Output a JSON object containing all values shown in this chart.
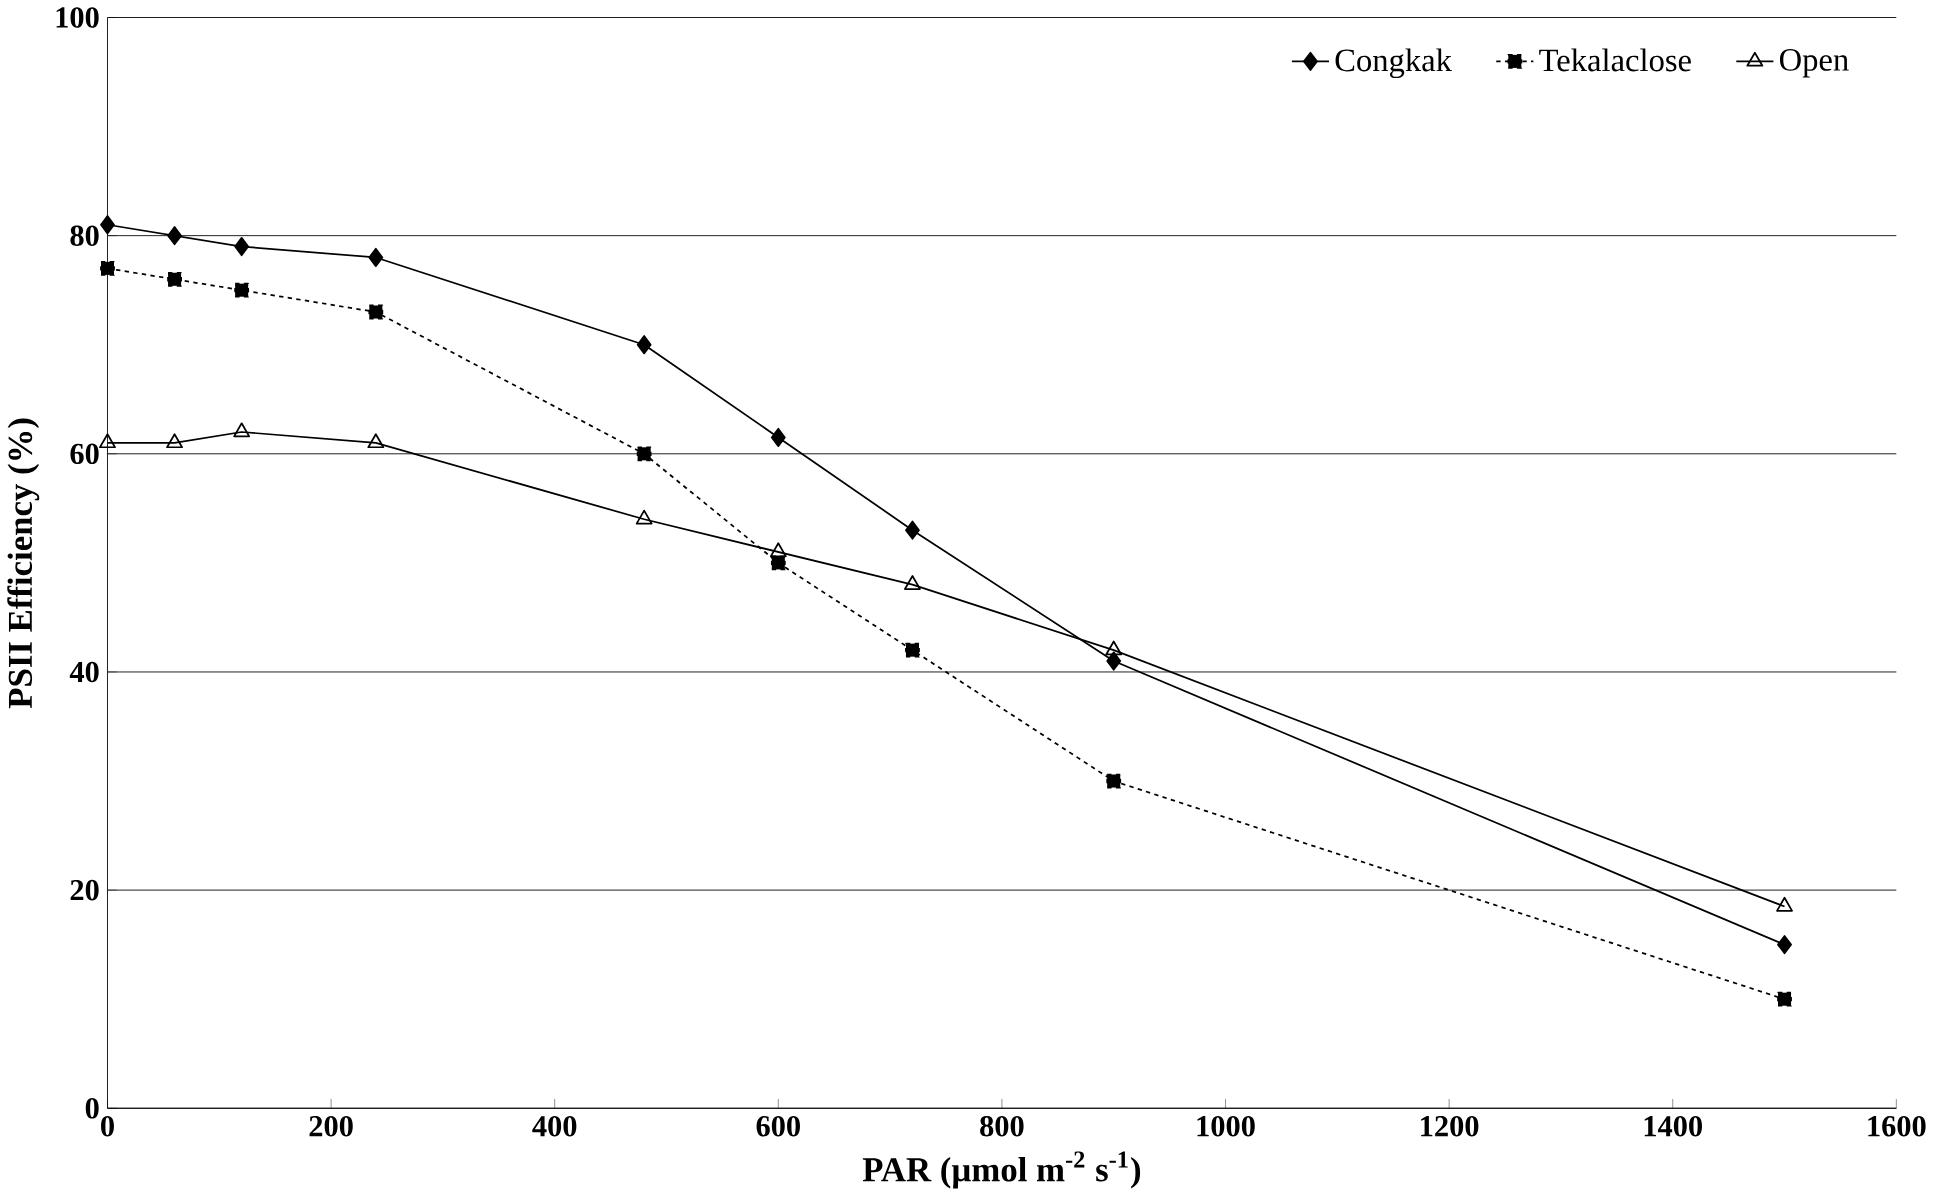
{
  "chart_data": {
    "type": "line",
    "xlabel": "PAR (µmol m$^{-2}$ s$^{-1}$)",
    "ylabel": "PSII Efficiency (%)",
    "x": [
      0,
      60,
      120,
      240,
      480,
      600,
      720,
      900,
      1500
    ],
    "series": [
      {
        "name": "Congkak",
        "color": "#000000",
        "marker": "diamond",
        "line_style": "solid",
        "values": [
          81,
          80,
          79,
          78,
          70,
          61.5,
          53,
          41,
          15
        ]
      },
      {
        "name": "Tekalaclose",
        "color": "#000000",
        "marker": "square",
        "line_style": "dotted",
        "values": [
          77,
          76,
          75,
          73,
          60,
          50,
          42,
          30,
          10
        ]
      },
      {
        "name": "Open",
        "color": "#000000",
        "marker": "triangle",
        "line_style": "solid",
        "values": [
          61,
          61,
          62,
          61,
          54,
          51,
          48,
          42,
          18.5
        ]
      }
    ],
    "xlim": [
      0,
      1600
    ],
    "ylim": [
      0,
      100
    ],
    "xticks": [
      0,
      200,
      400,
      600,
      800,
      1000,
      1200,
      1400,
      1600
    ],
    "yticks": [
      0,
      20,
      40,
      60,
      80,
      100
    ],
    "grid": "y",
    "legend": "top right"
  }
}
